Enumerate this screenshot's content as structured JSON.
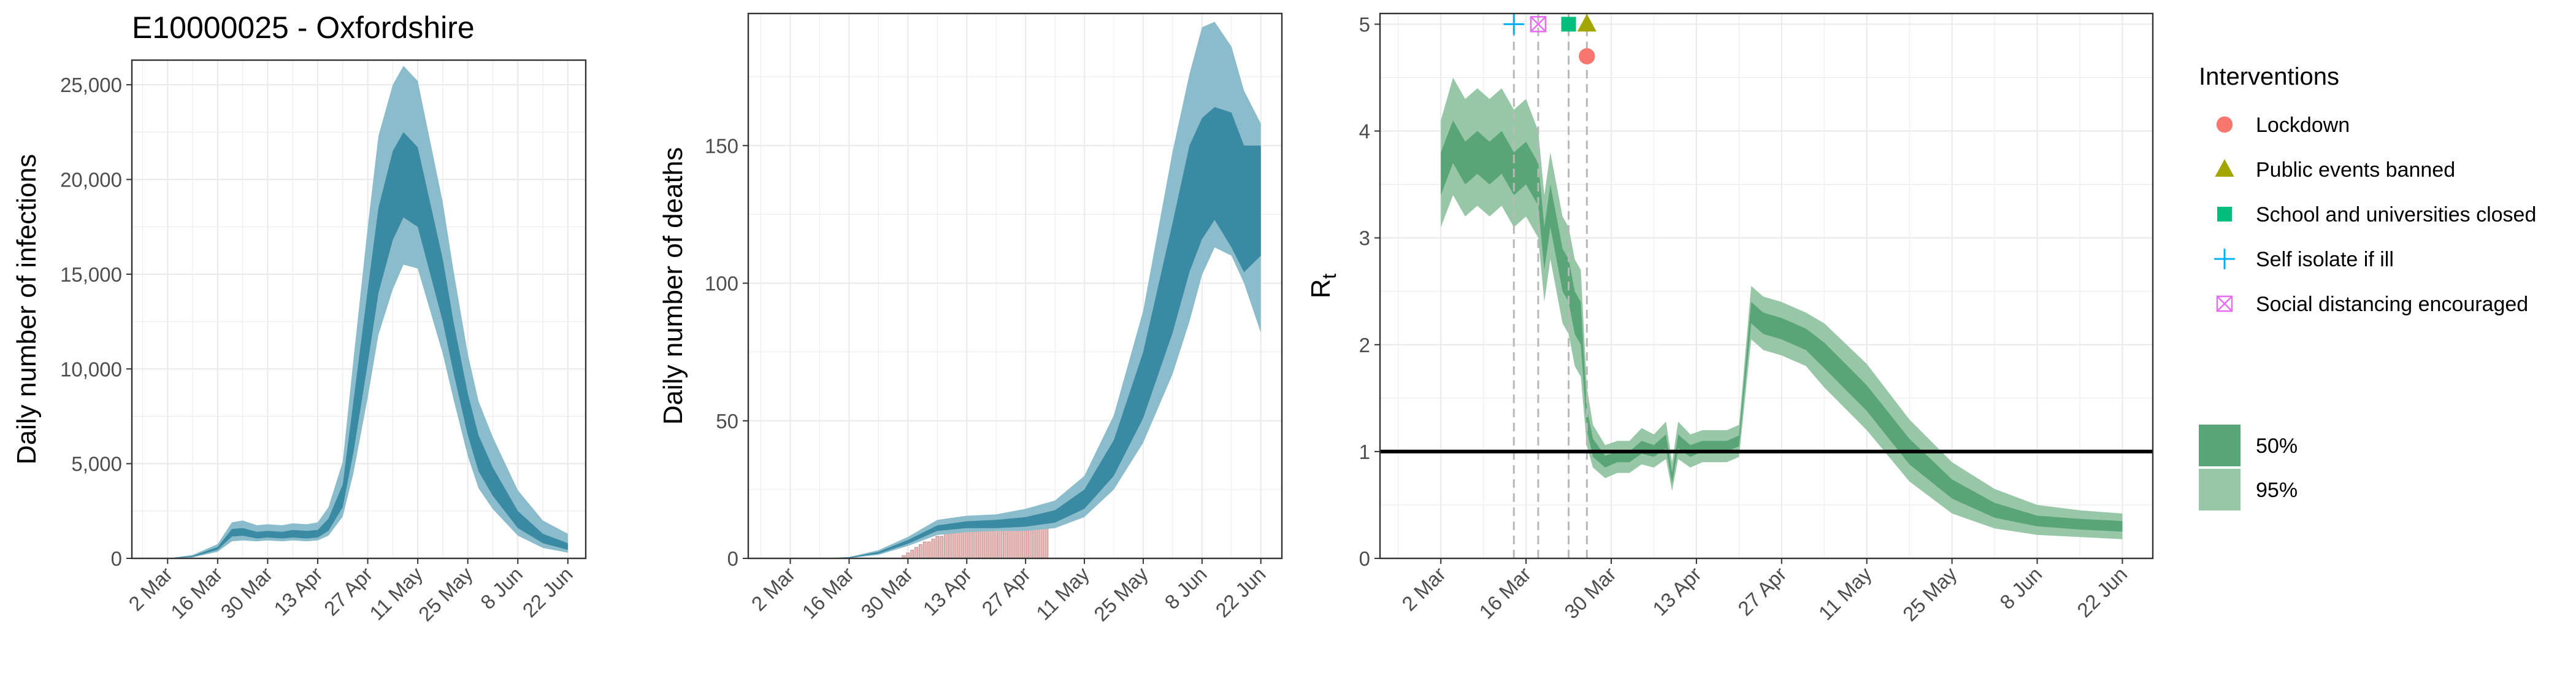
{
  "title": "E10000025 - Oxfordshire",
  "colors": {
    "infections_ci95": "#8bbccc",
    "infections_ci50": "#3a8aa3",
    "rt_ci95": "#98c7a8",
    "rt_ci50": "#5aa577",
    "observed_deaths": "#e8b9b7",
    "grid": "#ebebeb",
    "lockdown": "#f8766d",
    "public_events": "#a3a500",
    "schools": "#00bf7d",
    "self_isolate": "#00b0f6",
    "social_distancing": "#e76bf3"
  },
  "legend": {
    "interventions_title": "Interventions",
    "interventions": [
      {
        "label": "Lockdown",
        "shape": "circle",
        "color": "#f8766d"
      },
      {
        "label": "Public events banned",
        "shape": "triangle",
        "color": "#a3a500"
      },
      {
        "label": "School and universities closed",
        "shape": "square",
        "color": "#00bf7d"
      },
      {
        "label": "Self isolate if ill",
        "shape": "plus",
        "color": "#00b0f6"
      },
      {
        "label": "Social distancing encouraged",
        "shape": "boxcross",
        "color": "#e76bf3"
      }
    ],
    "ci": [
      {
        "label": "50%",
        "color": "#5aa577"
      },
      {
        "label": "95%",
        "color": "#98c7a8"
      }
    ]
  },
  "chart_data": [
    {
      "type": "area",
      "ylabel": "Daily number of infections",
      "xticks": [
        "2 Mar",
        "16 Mar",
        "30 Mar",
        "13 Apr",
        "27 Apr",
        "11 May",
        "25 May",
        "8 Jun",
        "22 Jun"
      ],
      "xlim": [
        -10,
        117
      ],
      "ylim": [
        0,
        26300
      ],
      "yticks": [
        0,
        5000,
        10000,
        15000,
        20000,
        25000
      ],
      "ytick_labels": [
        "0",
        "5,000",
        "10,000",
        "15,000",
        "20,000",
        "25,000"
      ],
      "x": [
        0,
        7,
        14,
        18,
        21,
        25,
        28,
        32,
        35,
        39,
        42,
        45,
        49,
        52,
        56,
        59,
        63,
        66,
        70,
        77,
        80,
        84,
        87,
        91,
        98,
        105,
        112
      ],
      "median": [
        0,
        100,
        500,
        1350,
        1400,
        1200,
        1250,
        1200,
        1300,
        1250,
        1300,
        1700,
        3200,
        6800,
        12000,
        16000,
        19000,
        20000,
        19500,
        14000,
        11000,
        7500,
        5500,
        4000,
        2000,
        1000,
        600
      ],
      "ci50": {
        "lower": [
          0,
          80,
          450,
          1150,
          1200,
          1050,
          1100,
          1050,
          1100,
          1050,
          1100,
          1450,
          2700,
          5600,
          10300,
          14000,
          16800,
          18000,
          17500,
          12500,
          9800,
          6500,
          4600,
          3300,
          1600,
          800,
          450
        ],
        "upper": [
          0,
          130,
          600,
          1550,
          1600,
          1400,
          1450,
          1400,
          1500,
          1450,
          1500,
          2100,
          3900,
          8300,
          14200,
          18500,
          21500,
          22500,
          21700,
          15800,
          12500,
          8700,
          6500,
          4800,
          2500,
          1300,
          800
        ]
      },
      "ci95": {
        "lower": [
          0,
          50,
          350,
          900,
          950,
          900,
          950,
          900,
          950,
          900,
          950,
          1200,
          2200,
          4500,
          8500,
          11800,
          14200,
          15500,
          15300,
          10800,
          8400,
          5400,
          3700,
          2600,
          1200,
          550,
          300
        ],
        "upper": [
          0,
          180,
          750,
          1900,
          2000,
          1750,
          1800,
          1750,
          1850,
          1800,
          1900,
          2700,
          5100,
          10500,
          17500,
          22300,
          25000,
          26000,
          25200,
          18800,
          15200,
          10800,
          8300,
          6400,
          3600,
          2000,
          1300
        ]
      }
    },
    {
      "type": "area",
      "ylabel": "Daily number of deaths",
      "xticks": [
        "2 Mar",
        "16 Mar",
        "30 Mar",
        "13 Apr",
        "27 Apr",
        "11 May",
        "25 May",
        "8 Jun",
        "22 Jun"
      ],
      "xlim": [
        -10,
        117
      ],
      "ylim": [
        0,
        198
      ],
      "yticks": [
        0,
        50,
        100,
        150
      ],
      "ytick_labels": [
        "0",
        "50",
        "100",
        "150"
      ],
      "x": [
        0,
        7,
        14,
        21,
        28,
        35,
        42,
        49,
        56,
        63,
        70,
        77,
        84,
        91,
        95,
        98,
        101,
        105,
        108,
        112
      ],
      "median": [
        0,
        0,
        0.3,
        2,
        6,
        11,
        12,
        12,
        13,
        15,
        21,
        36,
        62,
        100,
        128,
        150,
        165,
        160,
        150,
        130
      ],
      "ci50": {
        "lower": [
          0,
          0,
          0.2,
          1.7,
          5.3,
          10,
          11,
          11,
          11.5,
          13,
          18,
          30,
          51,
          82,
          104,
          116,
          123,
          113,
          104,
          110
        ],
        "upper": [
          0,
          0,
          0.4,
          2.4,
          6.7,
          12,
          13.5,
          14,
          15,
          17.5,
          25,
          43,
          75,
          122,
          150,
          160,
          164,
          162,
          150,
          150
        ]
      },
      "ci95": {
        "lower": [
          0,
          0,
          0.1,
          1.3,
          4.5,
          8.5,
          9.5,
          10,
          10,
          11,
          15,
          25,
          42,
          67,
          86,
          103,
          113,
          110,
          100,
          82
        ],
        "upper": [
          0,
          0,
          0.5,
          3,
          7.8,
          14,
          15.5,
          16,
          18,
          21,
          30,
          52,
          90,
          148,
          176,
          193,
          195,
          186,
          170,
          158
        ]
      },
      "observed_deaths": {
        "x": [
          27,
          28,
          29,
          30,
          31,
          32,
          33,
          34,
          35,
          36,
          37,
          38,
          39,
          40,
          41,
          42,
          43,
          44,
          45,
          46,
          47,
          48,
          49,
          50,
          51,
          52,
          53,
          54,
          55,
          56,
          57,
          58,
          59,
          60,
          61
        ],
        "y": [
          1,
          2,
          3,
          4,
          5,
          6,
          6,
          7,
          8,
          8,
          9,
          9,
          10,
          10,
          10,
          11,
          11,
          11,
          11,
          12,
          12,
          12,
          12,
          12,
          12,
          12,
          12,
          12,
          12,
          12,
          12,
          12,
          12,
          12,
          12
        ]
      }
    },
    {
      "type": "area",
      "ylabel": "R",
      "ylabel_sub": "t",
      "xticks": [
        "2 Mar",
        "16 Mar",
        "30 Mar",
        "13 Apr",
        "27 Apr",
        "11 May",
        "25 May",
        "8 Jun",
        "22 Jun"
      ],
      "xlim": [
        -10,
        117
      ],
      "ylim": [
        0,
        5.1
      ],
      "yticks": [
        0,
        1,
        2,
        3,
        4,
        5
      ],
      "ytick_labels": [
        "0",
        "1",
        "2",
        "3",
        "4",
        "5"
      ],
      "reference_line": 1,
      "x": [
        0,
        2,
        4,
        6,
        8,
        10,
        12,
        14,
        16,
        17,
        18,
        20,
        21,
        22,
        23,
        24,
        25,
        27,
        29,
        31,
        33,
        35,
        37,
        38,
        39,
        41,
        43,
        45,
        47,
        49,
        51,
        53,
        56,
        60,
        63,
        70,
        77,
        84,
        91,
        98,
        105,
        112
      ],
      "median": [
        3.6,
        3.9,
        3.7,
        3.8,
        3.7,
        3.8,
        3.6,
        3.7,
        3.5,
        2.9,
        3.3,
        2.7,
        2.6,
        2.3,
        2.2,
        1.3,
        1.05,
        0.9,
        0.95,
        0.95,
        1.05,
        1.0,
        1.1,
        0.75,
        1.1,
        1.0,
        1.05,
        1.05,
        1.05,
        1.1,
        2.3,
        2.2,
        2.15,
        2.05,
        1.9,
        1.5,
        1.0,
        0.65,
        0.45,
        0.35,
        0.32,
        0.3
      ],
      "ci50": {
        "lower": [
          3.4,
          3.7,
          3.5,
          3.6,
          3.5,
          3.6,
          3.4,
          3.5,
          3.3,
          2.7,
          3.1,
          2.5,
          2.4,
          2.1,
          2.0,
          1.2,
          0.95,
          0.85,
          0.9,
          0.9,
          0.98,
          0.95,
          1.03,
          0.7,
          1.03,
          0.95,
          1.0,
          1.0,
          1.0,
          1.05,
          2.2,
          2.1,
          2.05,
          1.95,
          1.78,
          1.38,
          0.88,
          0.56,
          0.38,
          0.3,
          0.27,
          0.25
        ],
        "upper": [
          3.8,
          4.1,
          3.9,
          4.0,
          3.9,
          4.0,
          3.8,
          3.9,
          3.7,
          3.1,
          3.5,
          2.9,
          2.8,
          2.5,
          2.4,
          1.4,
          1.12,
          0.96,
          1.0,
          1.0,
          1.1,
          1.06,
          1.16,
          0.8,
          1.16,
          1.06,
          1.1,
          1.1,
          1.1,
          1.15,
          2.4,
          2.3,
          2.25,
          2.15,
          2.02,
          1.62,
          1.12,
          0.74,
          0.52,
          0.4,
          0.37,
          0.35
        ]
      },
      "ci95": {
        "lower": [
          3.1,
          3.4,
          3.2,
          3.3,
          3.2,
          3.3,
          3.1,
          3.2,
          3.0,
          2.4,
          2.8,
          2.2,
          2.1,
          1.8,
          1.7,
          1.05,
          0.85,
          0.75,
          0.8,
          0.8,
          0.88,
          0.85,
          0.93,
          0.63,
          0.93,
          0.85,
          0.9,
          0.9,
          0.9,
          0.95,
          2.05,
          1.95,
          1.9,
          1.8,
          1.6,
          1.2,
          0.72,
          0.42,
          0.28,
          0.22,
          0.2,
          0.18
        ],
        "upper": [
          4.1,
          4.5,
          4.3,
          4.4,
          4.3,
          4.4,
          4.2,
          4.3,
          4.0,
          3.4,
          3.8,
          3.2,
          3.1,
          2.8,
          2.7,
          1.6,
          1.25,
          1.06,
          1.1,
          1.1,
          1.22,
          1.16,
          1.28,
          0.9,
          1.28,
          1.16,
          1.2,
          1.2,
          1.2,
          1.25,
          2.55,
          2.45,
          2.4,
          2.3,
          2.2,
          1.82,
          1.3,
          0.9,
          0.65,
          0.5,
          0.45,
          0.42
        ]
      },
      "interventions": [
        {
          "name": "Self isolate if ill",
          "x": 12,
          "shape": "plus",
          "color": "#00b0f6",
          "y": 5.0
        },
        {
          "name": "Social distancing encouraged",
          "x": 16,
          "shape": "boxcross",
          "color": "#e76bf3",
          "y": 5.0
        },
        {
          "name": "School and universities closed",
          "x": 21,
          "shape": "square",
          "color": "#00bf7d",
          "y": 5.0
        },
        {
          "name": "Public events banned",
          "x": 24,
          "shape": "triangle",
          "color": "#a3a500",
          "y": 5.0
        },
        {
          "name": "Lockdown",
          "x": 24,
          "shape": "circle",
          "color": "#f8766d",
          "y": 4.7
        }
      ]
    }
  ]
}
